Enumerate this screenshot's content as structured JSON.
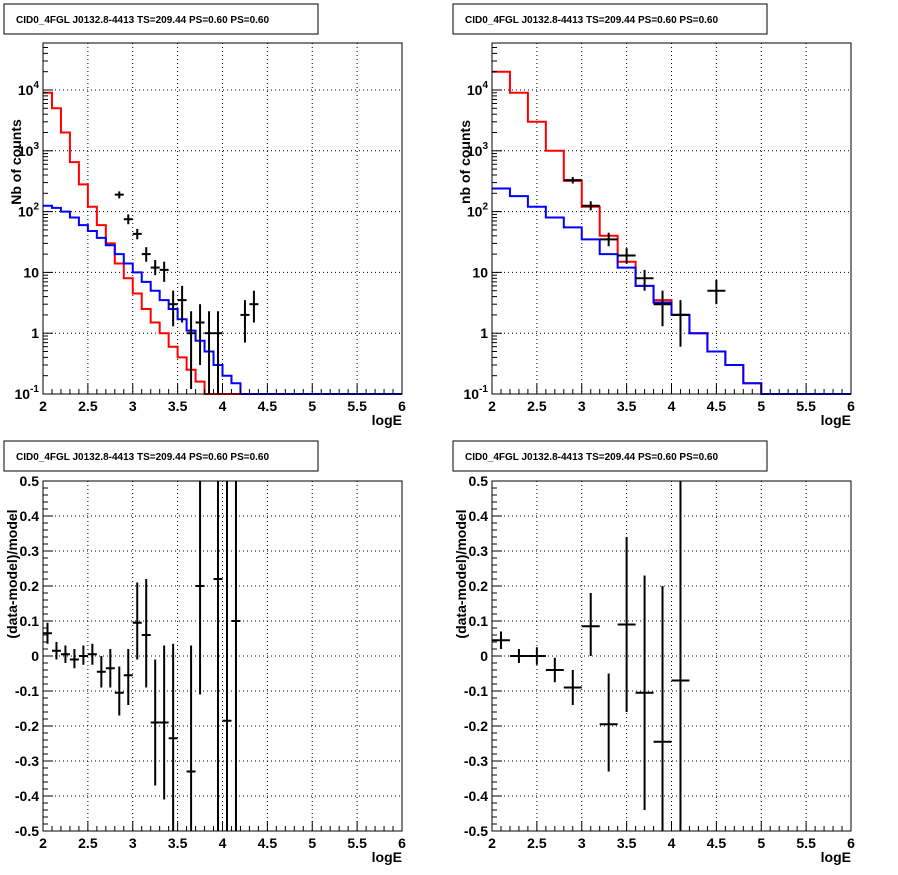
{
  "chart_data": [
    {
      "type": "histogram",
      "title": "CID0_4FGL J0132.8-4413 TS=209.44 PS=0.60 PS=0.60",
      "xlabel": "logE",
      "ylabel": "Nb of counts",
      "xlim": [
        2,
        6
      ],
      "ylim": [
        0.1,
        50000
      ],
      "yscale": "log",
      "grid": true,
      "x_ticks": [
        "2",
        "2.5",
        "3",
        "3.5",
        "4",
        "4.5",
        "5",
        "5.5",
        "6"
      ],
      "y_ticks": [
        "10^-1",
        "1",
        "10",
        "10^2",
        "10^3",
        "10^4"
      ],
      "bin_edges": [
        2.0,
        2.1,
        2.2,
        2.3,
        2.4,
        2.5,
        2.6,
        2.7,
        2.8,
        2.9,
        3.0,
        3.1,
        3.2,
        3.3,
        3.4,
        3.5,
        3.6,
        3.7,
        3.8,
        3.9,
        4.0,
        4.1,
        4.2,
        4.3,
        4.4,
        4.5,
        4.6,
        4.7,
        4.8,
        4.9,
        5.0,
        5.1,
        5.2,
        5.3,
        5.4,
        5.5,
        5.6,
        5.7,
        5.8,
        5.9,
        6.0
      ],
      "series": [
        {
          "color": "#ff0000",
          "values": [
            9000,
            5000,
            2000,
            650,
            280,
            120,
            60,
            30,
            14,
            8,
            4.5,
            2.5,
            1.5,
            1.0,
            0.6,
            0.4,
            0.25,
            0.16,
            0.1,
            0.1,
            0.1,
            0.1,
            0.1,
            0.1,
            0.1,
            0.1,
            0.1,
            0.1,
            0.1,
            0.1,
            0.1,
            0.1,
            0.1,
            0.1,
            0.1,
            0.1,
            0.1,
            0.1,
            0.1,
            0.1
          ]
        },
        {
          "color": "#0000ff",
          "values": [
            125,
            115,
            100,
            80,
            60,
            48,
            37,
            28,
            20,
            14,
            10,
            7,
            5,
            3.5,
            2.5,
            1.7,
            1.1,
            0.75,
            0.5,
            0.3,
            0.2,
            0.15,
            0.1,
            0.1,
            0.1,
            0.1,
            0.1,
            0.1,
            0.1,
            0.1,
            0.1,
            0.1,
            0.1,
            0.1,
            0.1,
            0.1,
            0.1,
            0.1,
            0.1,
            0.1
          ]
        }
      ],
      "data_points": [
        {
          "x": 2.85,
          "y": 190,
          "lo": 165,
          "hi": 215
        },
        {
          "x": 2.95,
          "y": 75,
          "lo": 62,
          "hi": 90
        },
        {
          "x": 3.05,
          "y": 43,
          "lo": 35,
          "hi": 52
        },
        {
          "x": 3.15,
          "y": 20,
          "lo": 15,
          "hi": 26
        },
        {
          "x": 3.25,
          "y": 12,
          "lo": 9,
          "hi": 16
        },
        {
          "x": 3.35,
          "y": 11,
          "lo": 7,
          "hi": 15
        },
        {
          "x": 3.45,
          "y": 3,
          "lo": 1.3,
          "hi": 5
        },
        {
          "x": 3.55,
          "y": 3.5,
          "lo": 1.5,
          "hi": 6
        },
        {
          "x": 3.65,
          "y": 1,
          "lo": 0.12,
          "hi": 2.3
        },
        {
          "x": 3.75,
          "y": 1.5,
          "lo": 0.3,
          "hi": 3
        },
        {
          "x": 3.85,
          "y": 1,
          "lo": 0.1,
          "hi": 2.3
        },
        {
          "x": 3.95,
          "y": 1,
          "lo": 0.1,
          "hi": 2.3
        },
        {
          "x": 4.25,
          "y": 2,
          "lo": 0.7,
          "hi": 3.5
        },
        {
          "x": 4.35,
          "y": 3,
          "lo": 1.5,
          "hi": 5
        }
      ]
    },
    {
      "type": "histogram",
      "title": "CID0_4FGL J0132.8-4413 TS=209.44 PS=0.60 PS=0.60",
      "xlabel": "logE",
      "ylabel": "nb of counts",
      "xlim": [
        2,
        6
      ],
      "ylim": [
        0.1,
        50000
      ],
      "yscale": "log",
      "grid": true,
      "x_ticks": [
        "2",
        "2.5",
        "3",
        "3.5",
        "4",
        "4.5",
        "5",
        "5.5",
        "6"
      ],
      "y_ticks": [
        "10^-1",
        "1",
        "10",
        "10^2",
        "10^3",
        "10^4"
      ],
      "bin_edges": [
        2.0,
        2.2,
        2.4,
        2.6,
        2.8,
        3.0,
        3.2,
        3.4,
        3.6,
        3.8,
        4.0,
        4.2,
        4.4,
        4.6,
        4.8,
        5.0,
        5.2,
        5.4,
        5.6,
        5.8,
        6.0
      ],
      "series": [
        {
          "color": "#ff0000",
          "values": [
            20000,
            9000,
            3000,
            1000,
            320,
            120,
            40,
            15,
            6,
            3.5,
            2,
            1,
            0.5,
            0.3,
            0.15,
            0.1,
            0.1,
            0.1,
            0.1,
            0.1
          ]
        },
        {
          "color": "#0000ff",
          "values": [
            240,
            180,
            120,
            80,
            55,
            35,
            20,
            12,
            6,
            3.2,
            2,
            1,
            0.5,
            0.3,
            0.15,
            0.1,
            0.1,
            0.1,
            0.1,
            0.1
          ]
        }
      ],
      "data_points": [
        {
          "x": 2.9,
          "y": 330,
          "lo": 290,
          "hi": 370
        },
        {
          "x": 3.1,
          "y": 125,
          "lo": 105,
          "hi": 148
        },
        {
          "x": 3.3,
          "y": 35,
          "lo": 27,
          "hi": 45
        },
        {
          "x": 3.5,
          "y": 19,
          "lo": 14,
          "hi": 25
        },
        {
          "x": 3.7,
          "y": 8,
          "lo": 5,
          "hi": 11
        },
        {
          "x": 3.9,
          "y": 3,
          "lo": 1.3,
          "hi": 5
        },
        {
          "x": 4.1,
          "y": 2,
          "lo": 0.6,
          "hi": 3.5
        },
        {
          "x": 4.5,
          "y": 5,
          "lo": 3,
          "hi": 7.5
        }
      ]
    },
    {
      "type": "scatter",
      "title": "CID0_4FGL J0132.8-4413 TS=209.44 PS=0.60 PS=0.60",
      "xlabel": "logE",
      "ylabel": "(data-model)/model",
      "xlim": [
        2,
        6
      ],
      "ylim": [
        -0.5,
        0.5
      ],
      "grid": true,
      "x_ticks": [
        "2",
        "2.5",
        "3",
        "3.5",
        "4",
        "4.5",
        "5",
        "5.5",
        "6"
      ],
      "y_ticks": [
        "-0.5",
        "-0.4",
        "-0.3",
        "-0.2",
        "-0.1",
        "0",
        "0.1",
        "0.2",
        "0.3",
        "0.4",
        "0.5"
      ],
      "bin_width": 0.1,
      "data_points": [
        {
          "x": 2.05,
          "y": 0.065,
          "lo": 0.035,
          "hi": 0.095
        },
        {
          "x": 2.15,
          "y": 0.015,
          "lo": -0.01,
          "hi": 0.04
        },
        {
          "x": 2.25,
          "y": 0.005,
          "lo": -0.02,
          "hi": 0.03
        },
        {
          "x": 2.35,
          "y": -0.01,
          "lo": -0.035,
          "hi": 0.02
        },
        {
          "x": 2.45,
          "y": 0.0,
          "lo": -0.025,
          "hi": 0.03
        },
        {
          "x": 2.55,
          "y": 0.005,
          "lo": -0.025,
          "hi": 0.035
        },
        {
          "x": 2.65,
          "y": -0.045,
          "lo": -0.09,
          "hi": 0.0
        },
        {
          "x": 2.75,
          "y": -0.035,
          "lo": -0.09,
          "hi": 0.02
        },
        {
          "x": 2.85,
          "y": -0.105,
          "lo": -0.17,
          "hi": -0.03
        },
        {
          "x": 2.95,
          "y": -0.055,
          "lo": -0.14,
          "hi": 0.02
        },
        {
          "x": 3.05,
          "y": 0.095,
          "lo": -0.01,
          "hi": 0.21
        },
        {
          "x": 3.15,
          "y": 0.06,
          "lo": -0.09,
          "hi": 0.22
        },
        {
          "x": 3.25,
          "y": -0.19,
          "lo": -0.37,
          "hi": -0.01
        },
        {
          "x": 3.35,
          "y": -0.19,
          "lo": -0.41,
          "hi": 0.03
        },
        {
          "x": 3.45,
          "y": -0.235,
          "lo": -0.5,
          "hi": 0.035
        },
        {
          "x": 3.65,
          "y": -0.33,
          "lo": -0.5,
          "hi": 0.03
        },
        {
          "x": 3.75,
          "y": 0.2,
          "lo": -0.11,
          "hi": 0.5
        },
        {
          "x": 3.95,
          "y": 0.22,
          "lo": -0.5,
          "hi": 0.5
        },
        {
          "x": 4.05,
          "y": -0.185,
          "lo": -0.5,
          "hi": 0.5
        },
        {
          "x": 4.15,
          "y": 0.1,
          "lo": -0.5,
          "hi": 0.5
        }
      ]
    },
    {
      "type": "scatter",
      "title": "CID0_4FGL J0132.8-4413 TS=209.44 PS=0.60 PS=0.60",
      "xlabel": "logE",
      "ylabel": "(data-model)/model",
      "xlim": [
        2,
        6
      ],
      "ylim": [
        -0.5,
        0.5
      ],
      "grid": true,
      "x_ticks": [
        "2",
        "2.5",
        "3",
        "3.5",
        "4",
        "4.5",
        "5",
        "5.5",
        "6"
      ],
      "y_ticks": [
        "-0.5",
        "-0.4",
        "-0.3",
        "-0.2",
        "-0.1",
        "0",
        "0.1",
        "0.2",
        "0.3",
        "0.4",
        "0.5"
      ],
      "bin_width": 0.2,
      "data_points": [
        {
          "x": 2.1,
          "y": 0.045,
          "lo": 0.02,
          "hi": 0.07
        },
        {
          "x": 2.3,
          "y": 0.0,
          "lo": -0.02,
          "hi": 0.02
        },
        {
          "x": 2.5,
          "y": 0.0,
          "lo": -0.025,
          "hi": 0.025
        },
        {
          "x": 2.7,
          "y": -0.04,
          "lo": -0.075,
          "hi": -0.005
        },
        {
          "x": 2.9,
          "y": -0.09,
          "lo": -0.14,
          "hi": -0.04
        },
        {
          "x": 3.1,
          "y": 0.085,
          "lo": 0.0,
          "hi": 0.18
        },
        {
          "x": 3.3,
          "y": -0.195,
          "lo": -0.33,
          "hi": -0.05
        },
        {
          "x": 3.5,
          "y": 0.09,
          "lo": -0.16,
          "hi": 0.34
        },
        {
          "x": 3.7,
          "y": -0.105,
          "lo": -0.44,
          "hi": 0.23
        },
        {
          "x": 3.9,
          "y": -0.245,
          "lo": -0.5,
          "hi": 0.2
        },
        {
          "x": 4.1,
          "y": -0.07,
          "lo": -0.5,
          "hi": 0.5
        }
      ]
    }
  ]
}
